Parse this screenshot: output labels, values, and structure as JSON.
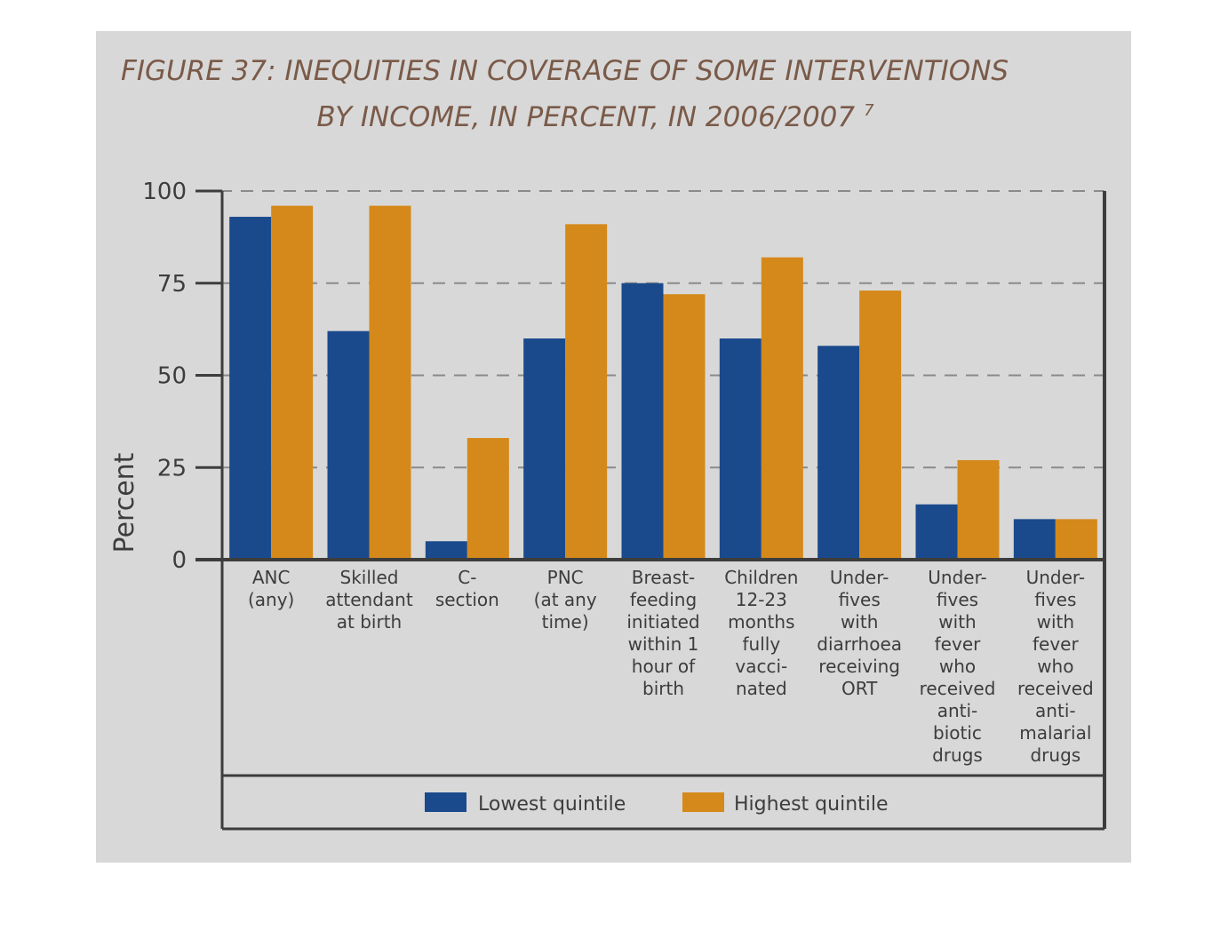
{
  "chart_data": {
    "type": "bar",
    "title_lines": [
      "FIGURE 37: INEQUITIES IN COVERAGE OF SOME INTERVENTIONS",
      "BY INCOME, IN PERCENT, IN 2006/2007"
    ],
    "title_superscript": "7",
    "ylabel": "Percent",
    "xlabel": "",
    "ylim": [
      0,
      100
    ],
    "yticks": [
      "0",
      "25",
      "50",
      "75",
      "100"
    ],
    "grid": true,
    "legend_position": "bottom",
    "categories": [
      [
        "ANC",
        "(any)"
      ],
      [
        "Skilled",
        "attendant",
        "at birth"
      ],
      [
        "C-",
        "section"
      ],
      [
        "PNC",
        "(at any",
        "time)"
      ],
      [
        "Breast-",
        "feeding",
        "initiated",
        "within 1",
        "hour of",
        "birth"
      ],
      [
        "Children",
        "12-23",
        "months",
        "fully",
        "vacci-",
        "nated"
      ],
      [
        "Under-",
        "fives",
        "with",
        "diarrhoea",
        "receiving",
        "ORT"
      ],
      [
        "Under-",
        "fives",
        "with",
        "fever",
        "who",
        "received",
        "anti-",
        "biotic",
        "drugs"
      ],
      [
        "Under-",
        "fives",
        "with",
        "fever",
        "who",
        "received",
        "anti-",
        "malarial",
        "drugs"
      ]
    ],
    "series": [
      {
        "name": "Lowest quintile",
        "color": "#1a4a8c",
        "values": [
          93,
          62,
          5,
          60,
          75,
          60,
          58,
          15,
          11
        ]
      },
      {
        "name": "Highest quintile",
        "color": "#d4891a",
        "values": [
          96,
          96,
          33,
          91,
          72,
          82,
          73,
          27,
          11
        ]
      }
    ]
  }
}
